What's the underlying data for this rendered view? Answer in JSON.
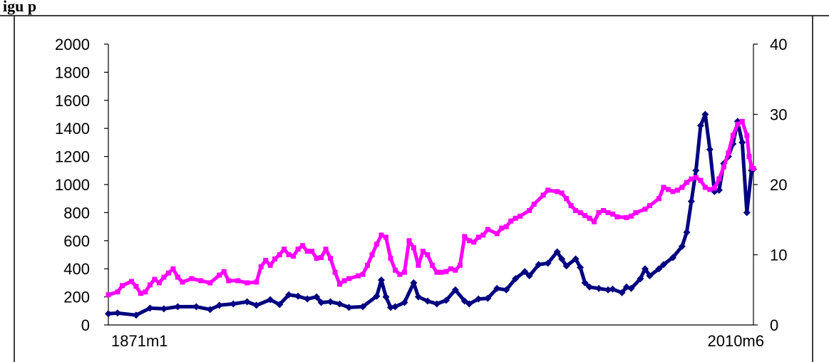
{
  "figure": {
    "title_visible": "igu                                              p"
  },
  "chart_data": {
    "type": "line",
    "title": "",
    "xlabel": "",
    "ylabel": "",
    "x_tick_labels": [
      "1871m1",
      "2010m6"
    ],
    "x_range": [
      1871.0,
      2010.42
    ],
    "y_left": {
      "ylim": [
        0,
        2000
      ],
      "ticks": [
        0,
        200,
        400,
        600,
        800,
        1000,
        1200,
        1400,
        1600,
        1800,
        2000
      ]
    },
    "y_right": {
      "ylim": [
        0,
        40
      ],
      "ticks": [
        0,
        10,
        20,
        30,
        40
      ]
    },
    "grid": false,
    "legend": "none",
    "series": [
      {
        "axis": "left",
        "color": "#000080",
        "marker": "diamond",
        "points": [
          [
            1871.0,
            80
          ],
          [
            1873.0,
            85
          ],
          [
            1877.0,
            70
          ],
          [
            1880.0,
            120
          ],
          [
            1883.0,
            115
          ],
          [
            1886.0,
            130
          ],
          [
            1890.0,
            130
          ],
          [
            1893.0,
            110
          ],
          [
            1895.0,
            140
          ],
          [
            1898.0,
            150
          ],
          [
            1901.0,
            165
          ],
          [
            1903.0,
            140
          ],
          [
            1906.0,
            180
          ],
          [
            1908.0,
            145
          ],
          [
            1910.0,
            215
          ],
          [
            1912.0,
            205
          ],
          [
            1914.0,
            185
          ],
          [
            1916.0,
            200
          ],
          [
            1917.0,
            160
          ],
          [
            1919.0,
            165
          ],
          [
            1921.0,
            150
          ],
          [
            1923.0,
            125
          ],
          [
            1926.0,
            130
          ],
          [
            1929.0,
            205
          ],
          [
            1930.0,
            320
          ],
          [
            1931.0,
            200
          ],
          [
            1932.0,
            125
          ],
          [
            1933.0,
            130
          ],
          [
            1935.0,
            160
          ],
          [
            1937.0,
            300
          ],
          [
            1938.0,
            200
          ],
          [
            1940.0,
            170
          ],
          [
            1942.0,
            150
          ],
          [
            1944.0,
            175
          ],
          [
            1946.0,
            250
          ],
          [
            1948.0,
            170
          ],
          [
            1949.0,
            150
          ],
          [
            1951.0,
            185
          ],
          [
            1953.0,
            190
          ],
          [
            1955.0,
            260
          ],
          [
            1957.0,
            250
          ],
          [
            1959.0,
            330
          ],
          [
            1961.0,
            380
          ],
          [
            1962.0,
            350
          ],
          [
            1964.0,
            430
          ],
          [
            1966.0,
            440
          ],
          [
            1968.0,
            520
          ],
          [
            1969.0,
            470
          ],
          [
            1970.0,
            420
          ],
          [
            1972.0,
            470
          ],
          [
            1973.0,
            410
          ],
          [
            1974.0,
            300
          ],
          [
            1975.0,
            270
          ],
          [
            1977.0,
            260
          ],
          [
            1979.0,
            250
          ],
          [
            1980.0,
            255
          ],
          [
            1982.0,
            230
          ],
          [
            1983.0,
            270
          ],
          [
            1984.0,
            260
          ],
          [
            1986.0,
            330
          ],
          [
            1987.0,
            400
          ],
          [
            1988.0,
            350
          ],
          [
            1990.0,
            400
          ],
          [
            1991.0,
            430
          ],
          [
            1993.0,
            480
          ],
          [
            1995.0,
            560
          ],
          [
            1996.0,
            660
          ],
          [
            1997.0,
            880
          ],
          [
            1998.0,
            1100
          ],
          [
            1999.0,
            1420
          ],
          [
            2000.0,
            1500
          ],
          [
            2001.0,
            1250
          ],
          [
            2002.0,
            950
          ],
          [
            2003.0,
            960
          ],
          [
            2004.0,
            1150
          ],
          [
            2005.0,
            1200
          ],
          [
            2006.0,
            1290
          ],
          [
            2007.0,
            1450
          ],
          [
            2008.0,
            1300
          ],
          [
            2009.0,
            800
          ],
          [
            2010.0,
            1100
          ],
          [
            2010.42,
            1110
          ]
        ]
      },
      {
        "axis": "right",
        "color": "#FF00FF",
        "marker": "square",
        "points": [
          [
            1871.0,
            4.3
          ],
          [
            1873.0,
            4.7
          ],
          [
            1874.0,
            5.6
          ],
          [
            1876.0,
            6.2
          ],
          [
            1877.0,
            5.5
          ],
          [
            1878.0,
            4.5
          ],
          [
            1879.0,
            4.7
          ],
          [
            1880.0,
            5.7
          ],
          [
            1881.0,
            6.5
          ],
          [
            1882.0,
            6.0
          ],
          [
            1883.0,
            6.8
          ],
          [
            1884.0,
            7.4
          ],
          [
            1885.0,
            8.0
          ],
          [
            1886.0,
            6.8
          ],
          [
            1887.0,
            6.1
          ],
          [
            1889.0,
            6.6
          ],
          [
            1891.0,
            6.3
          ],
          [
            1893.0,
            6.0
          ],
          [
            1895.0,
            7.1
          ],
          [
            1896.0,
            7.6
          ],
          [
            1897.0,
            6.3
          ],
          [
            1899.0,
            6.3
          ],
          [
            1901.0,
            6.0
          ],
          [
            1903.0,
            6.1
          ],
          [
            1904.0,
            8.3
          ],
          [
            1905.0,
            9.2
          ],
          [
            1906.0,
            8.5
          ],
          [
            1907.0,
            9.4
          ],
          [
            1908.0,
            10.0
          ],
          [
            1909.0,
            10.8
          ],
          [
            1910.0,
            10.0
          ],
          [
            1911.0,
            9.8
          ],
          [
            1912.0,
            10.8
          ],
          [
            1913.0,
            11.3
          ],
          [
            1914.0,
            10.5
          ],
          [
            1915.0,
            10.5
          ],
          [
            1916.0,
            9.5
          ],
          [
            1917.0,
            9.6
          ],
          [
            1918.0,
            10.8
          ],
          [
            1919.0,
            9.5
          ],
          [
            1920.0,
            7.5
          ],
          [
            1921.0,
            5.8
          ],
          [
            1922.0,
            6.3
          ],
          [
            1923.0,
            6.6
          ],
          [
            1925.0,
            7.0
          ],
          [
            1926.0,
            7.2
          ],
          [
            1927.0,
            8.5
          ],
          [
            1928.0,
            10.0
          ],
          [
            1929.0,
            11.5
          ],
          [
            1930.0,
            12.8
          ],
          [
            1931.0,
            12.5
          ],
          [
            1932.0,
            9.5
          ],
          [
            1933.0,
            7.8
          ],
          [
            1934.0,
            7.2
          ],
          [
            1935.0,
            7.5
          ],
          [
            1936.0,
            12.0
          ],
          [
            1937.0,
            11.0
          ],
          [
            1938.0,
            8.5
          ],
          [
            1939.0,
            10.5
          ],
          [
            1940.0,
            10.0
          ],
          [
            1941.0,
            8.5
          ],
          [
            1942.0,
            7.5
          ],
          [
            1943.0,
            7.5
          ],
          [
            1944.0,
            7.6
          ],
          [
            1945.0,
            8.0
          ],
          [
            1946.0,
            7.8
          ],
          [
            1947.0,
            8.5
          ],
          [
            1948.0,
            12.6
          ],
          [
            1949.0,
            12.0
          ],
          [
            1950.0,
            11.8
          ],
          [
            1951.0,
            12.5
          ],
          [
            1952.0,
            12.8
          ],
          [
            1953.0,
            13.6
          ],
          [
            1955.0,
            13.0
          ],
          [
            1956.0,
            13.8
          ],
          [
            1957.0,
            14.0
          ],
          [
            1958.0,
            14.8
          ],
          [
            1959.0,
            15.2
          ],
          [
            1960.0,
            15.5
          ],
          [
            1962.0,
            16.3
          ],
          [
            1963.0,
            17.2
          ],
          [
            1965.0,
            18.5
          ],
          [
            1966.0,
            19.2
          ],
          [
            1968.0,
            19.0
          ],
          [
            1969.0,
            18.8
          ],
          [
            1970.0,
            18.0
          ],
          [
            1971.0,
            17.0
          ],
          [
            1972.0,
            16.3
          ],
          [
            1973.0,
            16.0
          ],
          [
            1974.0,
            15.6
          ],
          [
            1975.0,
            15.2
          ],
          [
            1976.0,
            14.7
          ],
          [
            1977.0,
            16.0
          ],
          [
            1978.0,
            16.3
          ],
          [
            1979.0,
            16.0
          ],
          [
            1980.0,
            15.8
          ],
          [
            1981.0,
            15.4
          ],
          [
            1983.0,
            15.3
          ],
          [
            1984.0,
            15.5
          ],
          [
            1985.0,
            16.0
          ],
          [
            1987.0,
            16.5
          ],
          [
            1988.0,
            17.0
          ],
          [
            1990.0,
            18.0
          ],
          [
            1991.0,
            19.6
          ],
          [
            1992.0,
            19.3
          ],
          [
            1993.0,
            19.0
          ],
          [
            1994.0,
            19.2
          ],
          [
            1995.0,
            19.6
          ],
          [
            1996.0,
            20.3
          ],
          [
            1997.0,
            20.8
          ],
          [
            1998.0,
            21.0
          ],
          [
            1999.0,
            20.6
          ],
          [
            2000.0,
            19.6
          ],
          [
            2001.0,
            19.3
          ],
          [
            2002.0,
            19.5
          ],
          [
            2003.0,
            20.8
          ],
          [
            2004.0,
            22.5
          ],
          [
            2005.0,
            24.5
          ],
          [
            2006.0,
            27.0
          ],
          [
            2007.0,
            28.6
          ],
          [
            2008.0,
            29.0
          ],
          [
            2009.0,
            27.0
          ],
          [
            2009.5,
            24.0
          ],
          [
            2010.0,
            22.5
          ],
          [
            2010.42,
            22.3
          ]
        ]
      }
    ]
  }
}
